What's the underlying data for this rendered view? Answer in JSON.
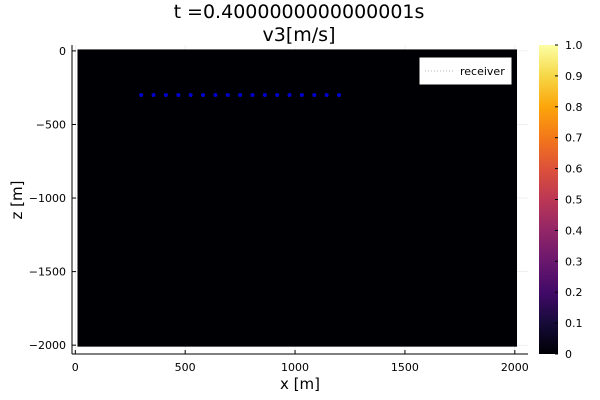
{
  "chart_data": {
    "type": "heatmap",
    "title_line1": "t =0.4000000000000001s",
    "title_line2": "v3[m/s]",
    "xlabel": "x [m]",
    "ylabel": "z [m]",
    "xlim": [
      -15,
      2060
    ],
    "ylim": [
      -2060,
      40
    ],
    "field_extent": {
      "x": [
        10,
        2010
      ],
      "z": [
        -2010,
        10
      ]
    },
    "x_ticks": [
      0,
      500,
      1000,
      1500,
      2000
    ],
    "y_ticks": [
      0,
      -500,
      -1000,
      -1500,
      -2000
    ],
    "x_tick_labels": [
      "0",
      "500",
      "1000",
      "1500",
      "2000"
    ],
    "y_tick_labels": [
      "0",
      "−500",
      "−1000",
      "−1500",
      "−2000"
    ],
    "field_color": "#000004",
    "colorbar": {
      "min": 0,
      "max": 1,
      "ticks": [
        0,
        0.1,
        0.2,
        0.3,
        0.4,
        0.5,
        0.6,
        0.7,
        0.8,
        0.9,
        1.0
      ],
      "tick_labels": [
        "0",
        "0.1",
        "0.2",
        "0.3",
        "0.4",
        "0.5",
        "0.6",
        "0.7",
        "0.8",
        "0.9",
        "1.0"
      ],
      "colormap": "inferno"
    },
    "series": [
      {
        "name": "receiver",
        "marker_color": "#0000cc",
        "x": [
          300,
          356.25,
          412.5,
          468.75,
          525,
          581.25,
          637.5,
          693.75,
          750,
          806.25,
          862.5,
          918.75,
          975,
          1031.25,
          1087.5,
          1143.75,
          1200
        ],
        "y": [
          -300,
          -300,
          -300,
          -300,
          -300,
          -300,
          -300,
          -300,
          -300,
          -300,
          -300,
          -300,
          -300,
          -300,
          -300,
          -300,
          -300
        ]
      }
    ],
    "legend_position": "top-right",
    "grid": true
  }
}
